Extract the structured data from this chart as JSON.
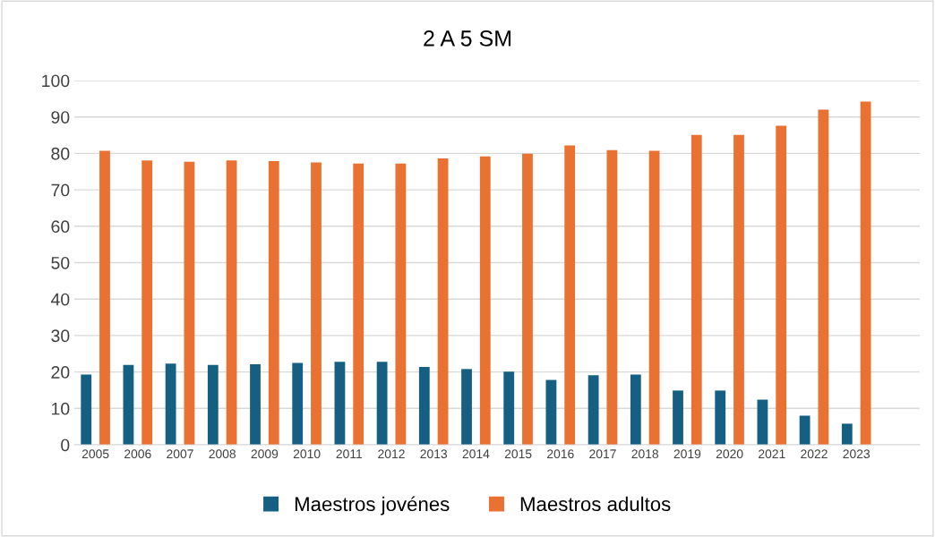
{
  "chart_data": {
    "type": "bar",
    "title": "2 A 5 SM",
    "categories": [
      "2005",
      "2006",
      "2007",
      "2008",
      "2009",
      "2010",
      "2011",
      "2012",
      "2013",
      "2014",
      "2015",
      "2016",
      "2017",
      "2018",
      "2019",
      "2020",
      "2021",
      "2022",
      "2023",
      null
    ],
    "series": [
      {
        "name": "Maestros jovénes",
        "color": "#156082",
        "values": [
          19.3,
          21.9,
          22.3,
          21.9,
          22.1,
          22.5,
          22.8,
          22.8,
          21.4,
          20.8,
          20.1,
          17.8,
          19.1,
          19.3,
          14.9,
          14.9,
          12.4,
          8.0,
          5.8,
          null
        ]
      },
      {
        "name": "Maestros adultos",
        "color": "#e97132",
        "values": [
          80.7,
          78.1,
          77.7,
          78.1,
          77.9,
          77.5,
          77.2,
          77.2,
          78.6,
          79.2,
          79.9,
          82.2,
          80.9,
          80.7,
          85.1,
          85.1,
          87.6,
          92.0,
          94.2,
          null
        ]
      }
    ],
    "ylim": [
      0,
      100
    ],
    "yticks": [
      0,
      10,
      20,
      30,
      40,
      50,
      60,
      70,
      80,
      90,
      100
    ],
    "grid": "y",
    "legend": "bottom"
  }
}
